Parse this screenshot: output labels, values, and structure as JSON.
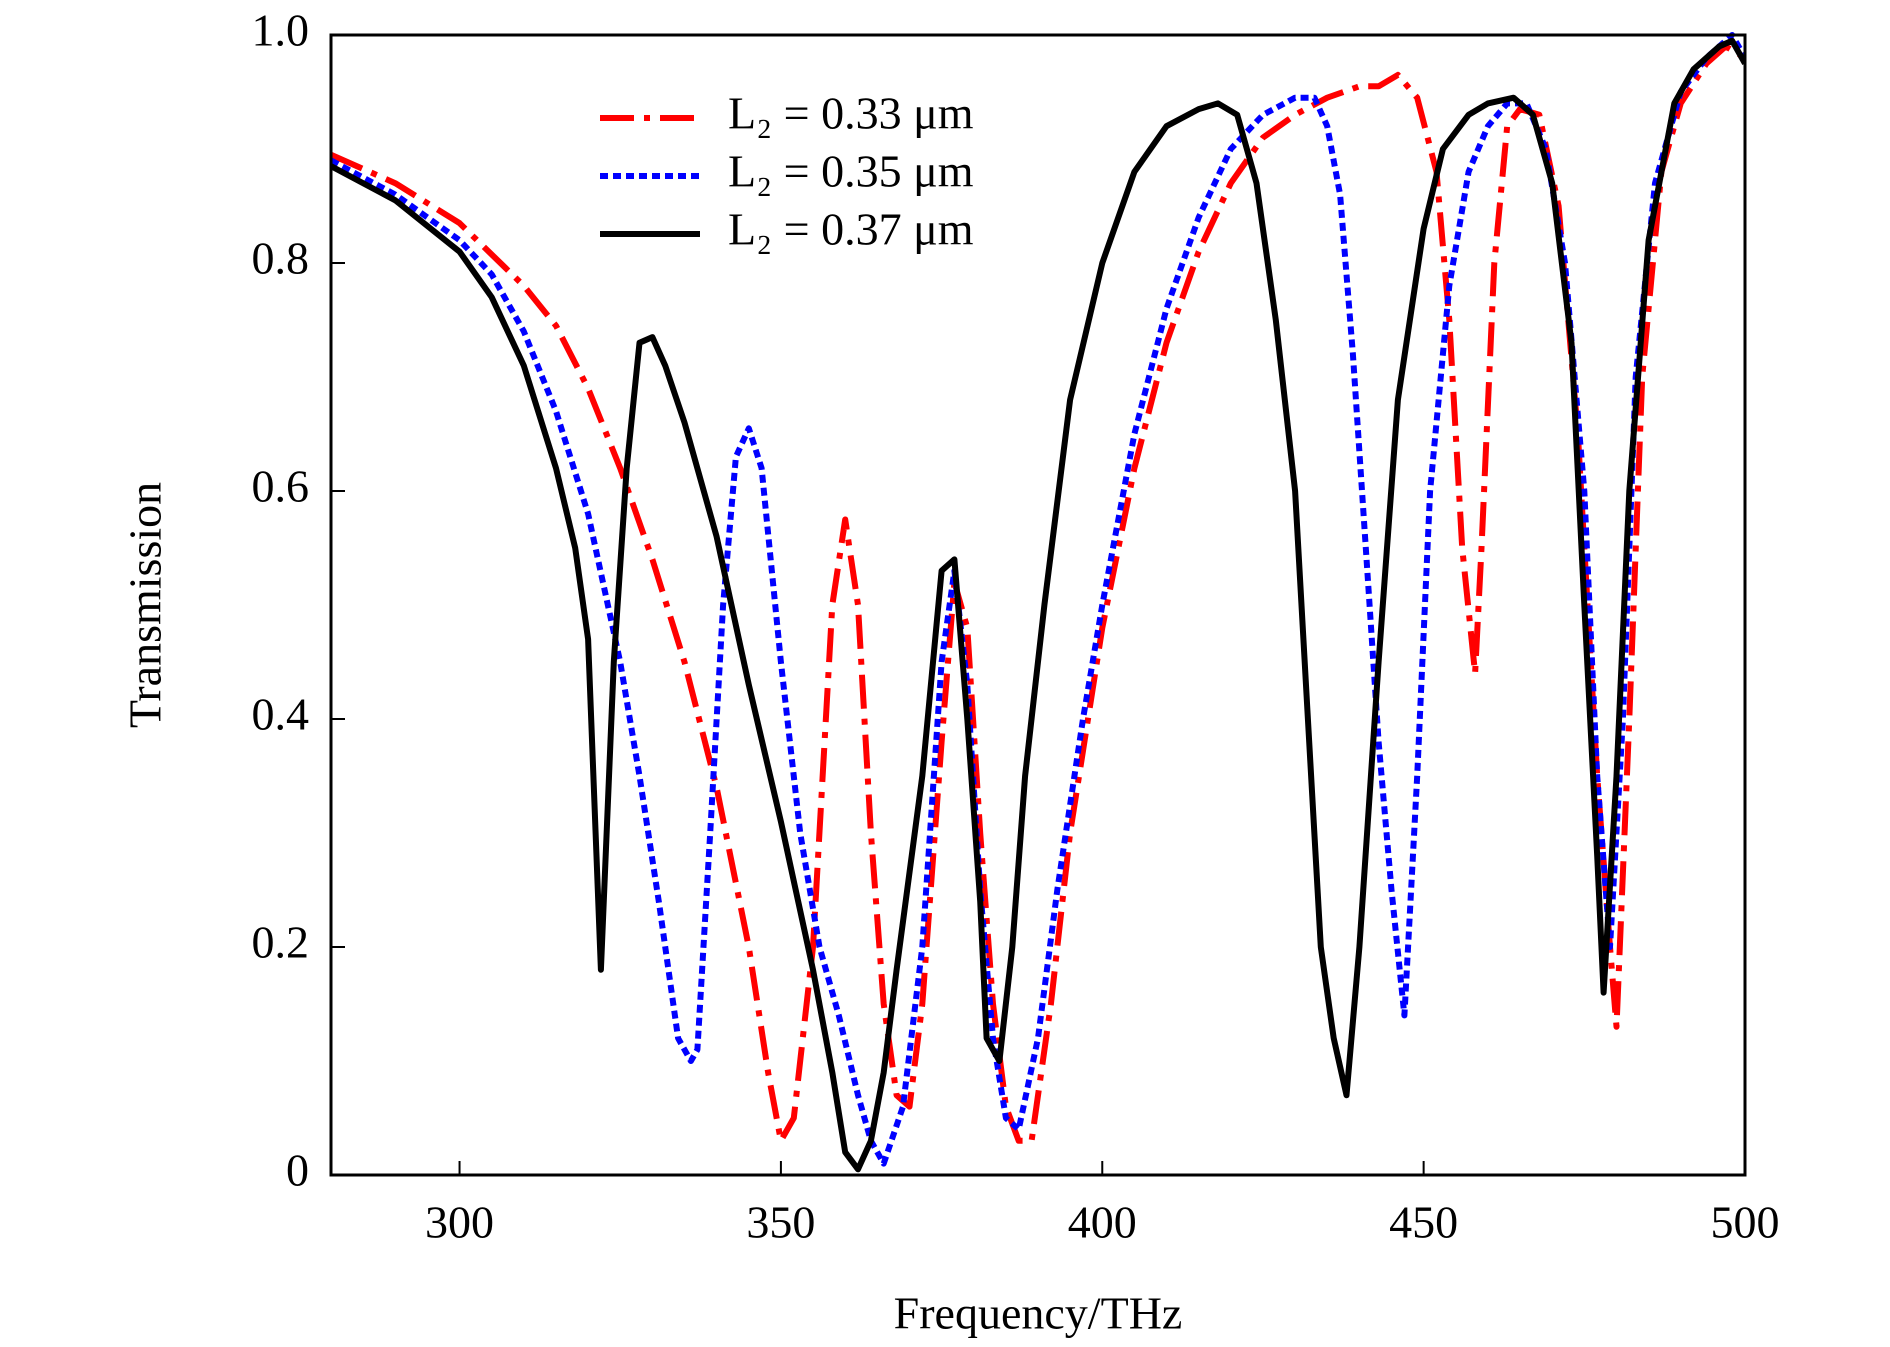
{
  "chart_data": {
    "type": "line",
    "x_label": "Frequency/THz",
    "y_label": "Transmission",
    "xlim": [
      280,
      500
    ],
    "ylim": [
      0,
      1
    ],
    "xticks": [
      300,
      350,
      400,
      450,
      500
    ],
    "yticks": [
      0,
      0.2,
      0.4,
      0.6,
      0.8,
      {
        "value": 1,
        "label": "1.0"
      }
    ],
    "legend": "upper-left",
    "series": [
      {
        "name": "L₂ = 0.33 μm",
        "color": "#ff0000",
        "style": "dashdot",
        "x": [
          280,
          290,
          300,
          310,
          315,
          320,
          325,
          330,
          335,
          340,
          345,
          348,
          350,
          352,
          355,
          358,
          360,
          362,
          364,
          366,
          368,
          370,
          372,
          375,
          377,
          379,
          381,
          383,
          385,
          387,
          389,
          392,
          395,
          400,
          405,
          410,
          415,
          420,
          425,
          430,
          435,
          440,
          443,
          446,
          449,
          452,
          454,
          456,
          458,
          459,
          461,
          463,
          465,
          468,
          471,
          474,
          477,
          479,
          480,
          482,
          484,
          487,
          490,
          494,
          497,
          500
        ],
        "values": [
          0.895,
          0.87,
          0.835,
          0.78,
          0.745,
          0.69,
          0.62,
          0.54,
          0.45,
          0.34,
          0.2,
          0.09,
          0.03,
          0.05,
          0.2,
          0.5,
          0.575,
          0.5,
          0.3,
          0.15,
          0.07,
          0.06,
          0.15,
          0.38,
          0.52,
          0.48,
          0.3,
          0.15,
          0.06,
          0.03,
          0.03,
          0.15,
          0.3,
          0.48,
          0.62,
          0.73,
          0.81,
          0.87,
          0.91,
          0.93,
          0.945,
          0.955,
          0.955,
          0.965,
          0.945,
          0.88,
          0.75,
          0.55,
          0.44,
          0.55,
          0.8,
          0.92,
          0.935,
          0.93,
          0.85,
          0.65,
          0.35,
          0.2,
          0.13,
          0.4,
          0.7,
          0.88,
          0.94,
          0.975,
          0.99,
          0.98
        ]
      },
      {
        "name": "L₂ = 0.35 μm",
        "color": "#0000ff",
        "style": "dotted",
        "x": [
          280,
          290,
          300,
          305,
          310,
          315,
          320,
          325,
          328,
          331,
          334,
          336,
          337,
          339,
          341,
          343,
          345,
          347,
          350,
          353,
          356,
          359,
          362,
          364,
          366,
          369,
          372,
          375,
          377,
          379,
          381,
          383,
          385,
          387,
          390,
          393,
          397,
          400,
          405,
          410,
          415,
          420,
          425,
          430,
          433,
          435,
          437,
          439,
          441,
          443,
          445,
          447,
          449,
          451,
          454,
          457,
          460,
          463,
          466,
          469,
          472,
          475,
          477,
          479,
          481,
          483,
          486,
          490,
          494,
          498,
          500
        ],
        "values": [
          0.89,
          0.86,
          0.82,
          0.79,
          0.74,
          0.67,
          0.58,
          0.45,
          0.35,
          0.24,
          0.12,
          0.1,
          0.11,
          0.3,
          0.5,
          0.63,
          0.655,
          0.62,
          0.45,
          0.3,
          0.2,
          0.14,
          0.07,
          0.03,
          0.01,
          0.06,
          0.2,
          0.45,
          0.53,
          0.43,
          0.25,
          0.12,
          0.05,
          0.04,
          0.12,
          0.25,
          0.4,
          0.5,
          0.65,
          0.76,
          0.84,
          0.9,
          0.93,
          0.945,
          0.945,
          0.92,
          0.86,
          0.72,
          0.55,
          0.38,
          0.25,
          0.14,
          0.35,
          0.6,
          0.78,
          0.88,
          0.92,
          0.94,
          0.94,
          0.9,
          0.8,
          0.6,
          0.35,
          0.2,
          0.4,
          0.7,
          0.87,
          0.95,
          0.98,
          1.0,
          0.98
        ]
      },
      {
        "name": "L₂ = 0.37 μm",
        "color": "#000000",
        "style": "solid",
        "x": [
          280,
          290,
          300,
          305,
          310,
          315,
          318,
          320,
          322,
          324,
          326,
          328,
          330,
          332,
          335,
          340,
          345,
          350,
          355,
          358,
          360,
          362,
          364,
          366,
          368,
          372,
          375,
          377,
          379,
          381,
          382,
          384,
          386,
          388,
          391,
          395,
          400,
          405,
          410,
          415,
          418,
          421,
          424,
          427,
          430,
          432,
          434,
          436,
          438,
          440,
          443,
          446,
          450,
          453,
          457,
          460,
          464,
          467,
          470,
          473,
          475,
          477,
          478,
          480,
          482,
          485,
          489,
          492,
          496,
          498,
          500
        ],
        "values": [
          0.885,
          0.855,
          0.81,
          0.77,
          0.71,
          0.62,
          0.55,
          0.47,
          0.18,
          0.45,
          0.62,
          0.73,
          0.735,
          0.71,
          0.66,
          0.56,
          0.43,
          0.31,
          0.18,
          0.09,
          0.02,
          0.005,
          0.03,
          0.09,
          0.18,
          0.35,
          0.53,
          0.54,
          0.4,
          0.24,
          0.12,
          0.1,
          0.2,
          0.35,
          0.5,
          0.68,
          0.8,
          0.88,
          0.92,
          0.935,
          0.94,
          0.93,
          0.87,
          0.75,
          0.6,
          0.4,
          0.2,
          0.12,
          0.07,
          0.2,
          0.45,
          0.68,
          0.83,
          0.9,
          0.93,
          0.94,
          0.945,
          0.93,
          0.87,
          0.73,
          0.5,
          0.28,
          0.16,
          0.35,
          0.6,
          0.82,
          0.94,
          0.97,
          0.99,
          0.995,
          0.975
        ]
      }
    ]
  }
}
